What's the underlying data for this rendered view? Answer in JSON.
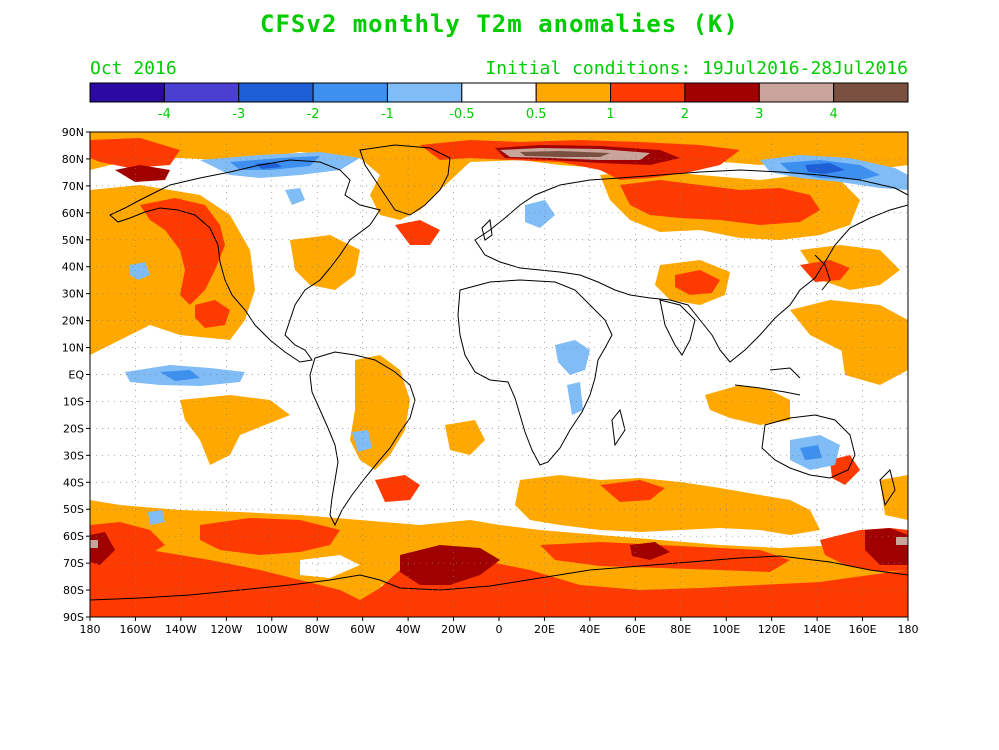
{
  "title": "CFSv2 monthly T2m anomalies (K)",
  "valid_month": "Oct 2016",
  "initial_conditions": "Initial conditions: 19Jul2016-28Jul2016",
  "colorbar": {
    "colors": [
      "#2a0aa0",
      "#4a3fd0",
      "#1f5fd6",
      "#3d90f0",
      "#80bcf5",
      "#ffffff",
      "#ffa800",
      "#ff3a00",
      "#a00000",
      "#c9a49a",
      "#7a5040"
    ],
    "labels": [
      "-4",
      "-3",
      "-2",
      "-1",
      "-0.5",
      "0.5",
      "1",
      "2",
      "3",
      "4"
    ]
  },
  "lat_ticks": [
    "90N",
    "80N",
    "70N",
    "60N",
    "50N",
    "40N",
    "30N",
    "20N",
    "10N",
    "EQ",
    "10S",
    "20S",
    "30S",
    "40S",
    "50S",
    "60S",
    "70S",
    "80S",
    "90S"
  ],
  "lon_ticks": [
    "180",
    "160W",
    "140W",
    "120W",
    "100W",
    "80W",
    "60W",
    "40W",
    "20W",
    "0",
    "20E",
    "40E",
    "60E",
    "80E",
    "100E",
    "120E",
    "140E",
    "160E",
    "180"
  ]
}
